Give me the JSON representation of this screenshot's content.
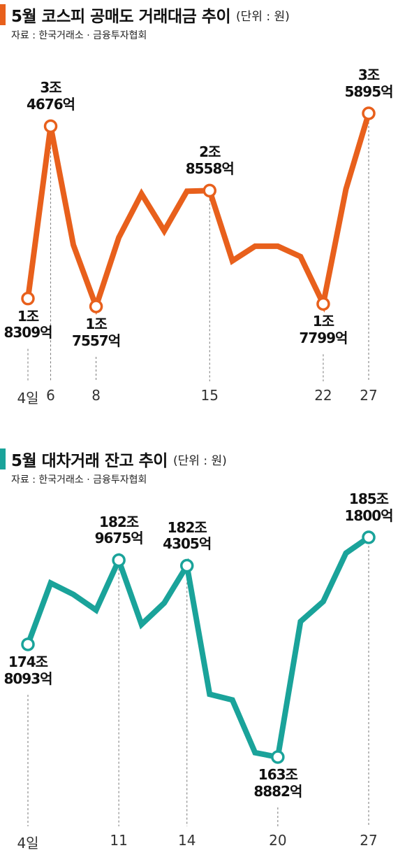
{
  "chart_data": [
    {
      "type": "line",
      "title": "5월 코스피 공매도 거래대금 추이",
      "unit_note": "(단위 : 원)",
      "source": "자료 : 한국거래소 · 금융투자협회",
      "color": "#e8601c",
      "categories": [
        "4일",
        "6",
        null,
        "8",
        null,
        null,
        null,
        null,
        "15",
        null,
        null,
        null,
        null,
        "22",
        null,
        "27"
      ],
      "values": [
        18309,
        34676,
        23400,
        17557,
        24100,
        28250,
        24740,
        28500,
        28558,
        21890,
        23280,
        23280,
        22290,
        17799,
        28700,
        35895
      ],
      "value_labels": [
        "1조\n8309억",
        "3조\n4676억",
        null,
        "1조\n7557억",
        null,
        null,
        null,
        null,
        "2조\n8558억",
        null,
        null,
        null,
        null,
        "1조\n7799억",
        null,
        "3조\n5895억"
      ]
    },
    {
      "type": "line",
      "title": "5월 대차거래 잔고 추이",
      "unit_note": "(단위 : 원)",
      "source": "자료 : 한국거래소 · 금융투자협회",
      "color": "#1aa39a",
      "categories": [
        "4일",
        null,
        null,
        null,
        "11",
        null,
        null,
        "14",
        null,
        null,
        null,
        "20",
        null,
        null,
        null,
        "27"
      ],
      "values": [
        1748093,
        1807500,
        1796500,
        1781300,
        1829675,
        1767400,
        1788200,
        1824305,
        1699700,
        1694200,
        1643100,
        1638882,
        1770200,
        1789600,
        1836500,
        1851800
      ],
      "value_labels": [
        "174조\n8093억",
        null,
        null,
        null,
        "182조\n9675억",
        null,
        null,
        "182조\n4305억",
        null,
        null,
        null,
        "163조\n8882억",
        null,
        null,
        null,
        "185조\n1800억"
      ]
    }
  ]
}
